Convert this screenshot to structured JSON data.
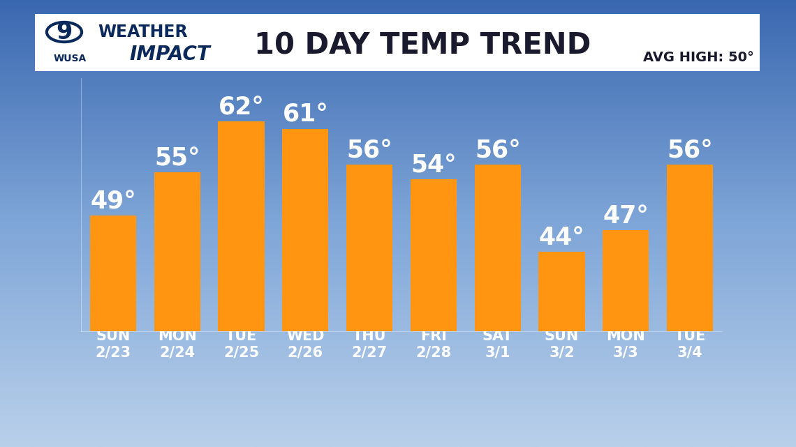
{
  "chart_data": {
    "type": "bar",
    "title": "10 DAY TEMP TREND",
    "categories": [
      "SUN\n2/23",
      "MON\n2/24",
      "TUE\n2/25",
      "WED\n2/26",
      "THU\n2/27",
      "FRI\n2/28",
      "SAT\n3/1",
      "SUN\n3/2",
      "MON\n3/3",
      "TUE\n3/4"
    ],
    "values": [
      49,
      55,
      62,
      61,
      56,
      54,
      56,
      44,
      47,
      56
    ],
    "value_labels": [
      "49°",
      "55°",
      "62°",
      "61°",
      "56°",
      "54°",
      "56°",
      "44°",
      "47°",
      "56°"
    ],
    "data_labels": true,
    "color": "#ff9510",
    "ylim": [
      33,
      68
    ],
    "yticks": [],
    "grid": false,
    "tick_labels": "x",
    "annotations": [
      "9",
      "WUSA",
      "WEATHER",
      "IMPACT",
      "AVG HIGH: 50°"
    ]
  }
}
